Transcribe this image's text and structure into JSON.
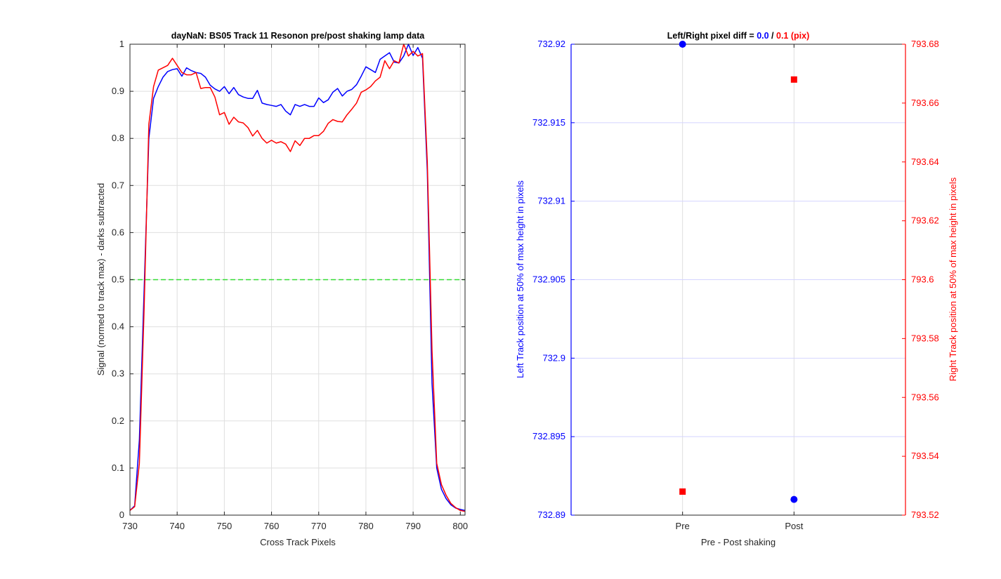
{
  "chart_data": [
    {
      "type": "line",
      "title": "dayNaN: BS05  Track 11 Resonon pre/post shaking lamp data",
      "xlabel": "Cross Track Pixels",
      "ylabel": "Signal (normed to track max) - darks subtracted",
      "xlim": [
        730,
        801
      ],
      "ylim": [
        0,
        1
      ],
      "x_ticks": [
        730,
        740,
        750,
        760,
        770,
        780,
        790,
        800
      ],
      "y_ticks": [
        0,
        0.1,
        0.2,
        0.3,
        0.4,
        0.5,
        0.6,
        0.7,
        0.8,
        0.9,
        1
      ],
      "grid": true,
      "colors": {
        "pre": "#0000ff",
        "post": "#ff0000",
        "threshold": "#33dd33"
      },
      "threshold": 0.5,
      "series": [
        {
          "color": "#0000ff",
          "x": [
            730,
            731,
            732,
            733,
            734,
            735,
            736,
            737,
            738,
            739,
            740,
            741,
            742,
            743,
            744,
            745,
            746,
            747,
            748,
            749,
            750,
            751,
            752,
            753,
            754,
            755,
            756,
            757,
            758,
            759,
            760,
            761,
            762,
            763,
            764,
            765,
            766,
            767,
            768,
            769,
            770,
            771,
            772,
            773,
            774,
            775,
            776,
            777,
            778,
            779,
            780,
            781,
            782,
            783,
            784,
            785,
            786,
            787,
            788,
            789,
            790,
            791,
            792,
            793,
            794,
            795,
            796,
            797,
            798,
            799,
            800,
            801
          ],
          "values": [
            0.01,
            0.02,
            0.16,
            0.48,
            0.8,
            0.885,
            0.91,
            0.93,
            0.942,
            0.946,
            0.948,
            0.932,
            0.95,
            0.944,
            0.94,
            0.938,
            0.93,
            0.913,
            0.905,
            0.9,
            0.91,
            0.895,
            0.908,
            0.893,
            0.888,
            0.885,
            0.885,
            0.902,
            0.875,
            0.872,
            0.87,
            0.868,
            0.872,
            0.858,
            0.85,
            0.872,
            0.868,
            0.872,
            0.868,
            0.868,
            0.886,
            0.876,
            0.882,
            0.898,
            0.906,
            0.89,
            0.9,
            0.904,
            0.914,
            0.932,
            0.952,
            0.946,
            0.94,
            0.968,
            0.975,
            0.982,
            0.962,
            0.96,
            0.975,
            1.0,
            0.976,
            0.993,
            0.97,
            0.73,
            0.28,
            0.1,
            0.055,
            0.035,
            0.022,
            0.015,
            0.012,
            0.01
          ]
        },
        {
          "color": "#ff0000",
          "x": [
            730,
            731,
            732,
            733,
            734,
            735,
            736,
            737,
            738,
            739,
            740,
            741,
            742,
            743,
            744,
            745,
            746,
            747,
            748,
            749,
            750,
            751,
            752,
            753,
            754,
            755,
            756,
            757,
            758,
            759,
            760,
            761,
            762,
            763,
            764,
            765,
            766,
            767,
            768,
            769,
            770,
            771,
            772,
            773,
            774,
            775,
            776,
            777,
            778,
            779,
            780,
            781,
            782,
            783,
            784,
            785,
            786,
            787,
            788,
            789,
            790,
            791,
            792,
            793,
            794,
            795,
            796,
            797,
            798,
            799,
            800,
            801
          ],
          "values": [
            0.01,
            0.018,
            0.11,
            0.44,
            0.83,
            0.91,
            0.945,
            0.95,
            0.955,
            0.97,
            0.955,
            0.94,
            0.935,
            0.935,
            0.94,
            0.906,
            0.908,
            0.908,
            0.888,
            0.85,
            0.855,
            0.83,
            0.845,
            0.835,
            0.833,
            0.823,
            0.805,
            0.817,
            0.8,
            0.79,
            0.796,
            0.79,
            0.793,
            0.788,
            0.772,
            0.795,
            0.785,
            0.8,
            0.8,
            0.806,
            0.806,
            0.815,
            0.832,
            0.84,
            0.836,
            0.835,
            0.85,
            0.862,
            0.875,
            0.898,
            0.903,
            0.91,
            0.922,
            0.93,
            0.965,
            0.948,
            0.965,
            0.96,
            1.0,
            0.975,
            0.985,
            0.975,
            0.98,
            0.75,
            0.35,
            0.11,
            0.065,
            0.042,
            0.025,
            0.016,
            0.01,
            0.008
          ]
        }
      ]
    },
    {
      "type": "scatter",
      "title_parts": [
        "Left/Right pixel diff = ",
        "0.0",
        " / ",
        "0.1",
        " (pix)"
      ],
      "xlabel": "Pre - Post shaking",
      "categories": [
        "Pre",
        "Post"
      ],
      "ylabel_left": "Left Track position at 50% of max height in pixels",
      "ylabel_right": "Right Track position at 50% of max height in pixels",
      "ylim_left": [
        732.89,
        732.92
      ],
      "ylim_right": [
        793.52,
        793.68
      ],
      "yticks_left": [
        "732.89",
        "732.895",
        "732.9",
        "732.905",
        "732.91",
        "732.915",
        "732.92"
      ],
      "yticks_right": [
        "793.52",
        "793.54",
        "793.56",
        "793.58",
        "793.6",
        "793.62",
        "793.64",
        "793.66",
        "793.68"
      ],
      "left_values": [
        732.92,
        732.891
      ],
      "right_values": [
        793.528,
        793.668
      ],
      "left_color": "#0000ff",
      "right_color": "#ff0000",
      "grid": true
    }
  ]
}
